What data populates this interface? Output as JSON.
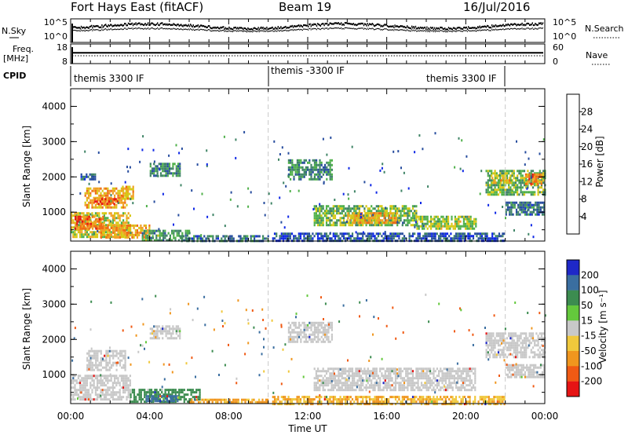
{
  "header": {
    "station": "Fort Hays East (fitACF)",
    "beam": "Beam 19",
    "date": "16/Jul/2016"
  },
  "noise_panel": {
    "left_label": "N.Sky",
    "right_label": "N.Search",
    "left_ticks": [
      "10^5",
      "10^0"
    ],
    "right_ticks": [
      "10^5",
      "10^0"
    ]
  },
  "freq_panel": {
    "left_label_1": "Freq.",
    "left_label_2": "[MHz]",
    "right_label": "Nave",
    "left_ticks": [
      "18",
      "8"
    ],
    "right_ticks": [
      "60",
      "0"
    ]
  },
  "cpid_panel": {
    "label": "CPID",
    "segments": [
      {
        "name": "themis 3300 IF",
        "start_hour": 0,
        "end_hour": 10
      },
      {
        "name": "themis -3300 IF",
        "start_hour": 10,
        "end_hour": 22
      },
      {
        "name": "themis 3300 IF",
        "start_hour": 22,
        "end_hour": 24
      }
    ]
  },
  "power_panel": {
    "ylabel": "Slant Range [km]",
    "colorbar_label": "Power [dB]",
    "colorbar_ticks": [
      "4",
      "8",
      "12",
      "16",
      "20",
      "24",
      "28"
    ],
    "colorbar_colors": [
      "#0f28e6",
      "#274d9e",
      "#3f8466",
      "#4fb04a",
      "#d7c814",
      "#f0a023",
      "#f06a14",
      "#e61414"
    ]
  },
  "velocity_panel": {
    "ylabel": "Slant Range [km]",
    "colorbar_label": "Velocity [m s⁻¹]",
    "colorbar_ticks": [
      "200",
      "100",
      "50",
      "15",
      "-15",
      "-50",
      "-100",
      "-200"
    ],
    "colorbar_colors": [
      "#1e28c8",
      "#3a6ea0",
      "#3c8c50",
      "#64c83c",
      "#c8c8c8",
      "#f0c83c",
      "#f0961e",
      "#f05a14",
      "#e61414"
    ]
  },
  "xaxis": {
    "label": "Time UT",
    "ticks": [
      "00:00",
      "04:00",
      "08:00",
      "12:00",
      "16:00",
      "20:00",
      "00:00"
    ]
  },
  "chart_data": {
    "type": "heatmap",
    "x_unit": "hours UT",
    "xlim": [
      0,
      24
    ],
    "ylim": [
      180,
      4500
    ],
    "yticks": [
      1000,
      2000,
      3000,
      4000
    ],
    "dashed_times": [
      10,
      22
    ],
    "power_patches": [
      {
        "t0": 0.0,
        "t1": 3.0,
        "r0": 300,
        "r1": 1000,
        "p": 18
      },
      {
        "t0": 0.2,
        "t1": 1.6,
        "r0": 500,
        "r1": 900,
        "p": 26
      },
      {
        "t0": 0.7,
        "t1": 2.8,
        "r0": 1100,
        "r1": 1700,
        "p": 22
      },
      {
        "t0": 1.2,
        "t1": 2.4,
        "r0": 1200,
        "r1": 1400,
        "p": 28
      },
      {
        "t0": 2.6,
        "t1": 3.2,
        "r0": 1400,
        "r1": 1750,
        "p": 20
      },
      {
        "t0": 1.5,
        "t1": 4.0,
        "r0": 250,
        "r1": 650,
        "p": 22
      },
      {
        "t0": 3.6,
        "t1": 6.0,
        "r0": 200,
        "r1": 500,
        "p": 12
      },
      {
        "t0": 4.0,
        "t1": 5.5,
        "r0": 2000,
        "r1": 2400,
        "p": 10
      },
      {
        "t0": 5.5,
        "t1": 10.0,
        "r0": 190,
        "r1": 350,
        "p": 8
      },
      {
        "t0": 0.5,
        "t1": 1.2,
        "r0": 1900,
        "r1": 2100,
        "p": 6
      },
      {
        "t0": 11.0,
        "t1": 13.2,
        "r0": 1900,
        "r1": 2500,
        "p": 10
      },
      {
        "t0": 12.3,
        "t1": 17.5,
        "r0": 600,
        "r1": 1200,
        "p": 14
      },
      {
        "t0": 14.0,
        "t1": 16.5,
        "r0": 700,
        "r1": 1000,
        "p": 22
      },
      {
        "t0": 17.5,
        "t1": 20.5,
        "r0": 550,
        "r1": 900,
        "p": 16
      },
      {
        "t0": 10.2,
        "t1": 22.0,
        "r0": 190,
        "r1": 420,
        "p": 6
      },
      {
        "t0": 21.0,
        "t1": 24.0,
        "r0": 1500,
        "r1": 2200,
        "p": 14
      },
      {
        "t0": 21.3,
        "t1": 22.3,
        "r0": 1800,
        "r1": 2000,
        "p": 20
      },
      {
        "t0": 23.0,
        "t1": 23.8,
        "r0": 1800,
        "r1": 2100,
        "p": 24
      },
      {
        "t0": 22.0,
        "t1": 24.0,
        "r0": 900,
        "r1": 1300,
        "p": 8
      }
    ],
    "velocity_patches": [
      {
        "t0": 0.0,
        "t1": 3.0,
        "r0": 300,
        "r1": 1000,
        "v": 0
      },
      {
        "t0": 0.8,
        "t1": 2.8,
        "r0": 1100,
        "r1": 1700,
        "v": 0
      },
      {
        "t0": 3.0,
        "t1": 6.5,
        "r0": 200,
        "r1": 600,
        "v": 60
      },
      {
        "t0": 3.8,
        "t1": 5.4,
        "r0": 220,
        "r1": 420,
        "v": 120
      },
      {
        "t0": 4.0,
        "t1": 5.5,
        "r0": 2000,
        "r1": 2400,
        "v": 0
      },
      {
        "t0": 6.0,
        "t1": 10.0,
        "r0": 190,
        "r1": 320,
        "v": -40
      },
      {
        "t0": 11.0,
        "t1": 13.2,
        "r0": 1900,
        "r1": 2500,
        "v": 0
      },
      {
        "t0": 12.3,
        "t1": 20.5,
        "r0": 550,
        "r1": 1200,
        "v": 0
      },
      {
        "t0": 10.2,
        "t1": 22.0,
        "r0": 190,
        "r1": 400,
        "v": -30
      },
      {
        "t0": 21.0,
        "t1": 24.0,
        "r0": 1500,
        "r1": 2200,
        "v": 0
      },
      {
        "t0": 22.0,
        "t1": 24.0,
        "r0": 900,
        "r1": 1300,
        "v": 0
      }
    ],
    "noise_sky_level": 0.72,
    "noise_search_level": 0.62,
    "freq_level": 0.55,
    "nave_level": 0.4
  }
}
